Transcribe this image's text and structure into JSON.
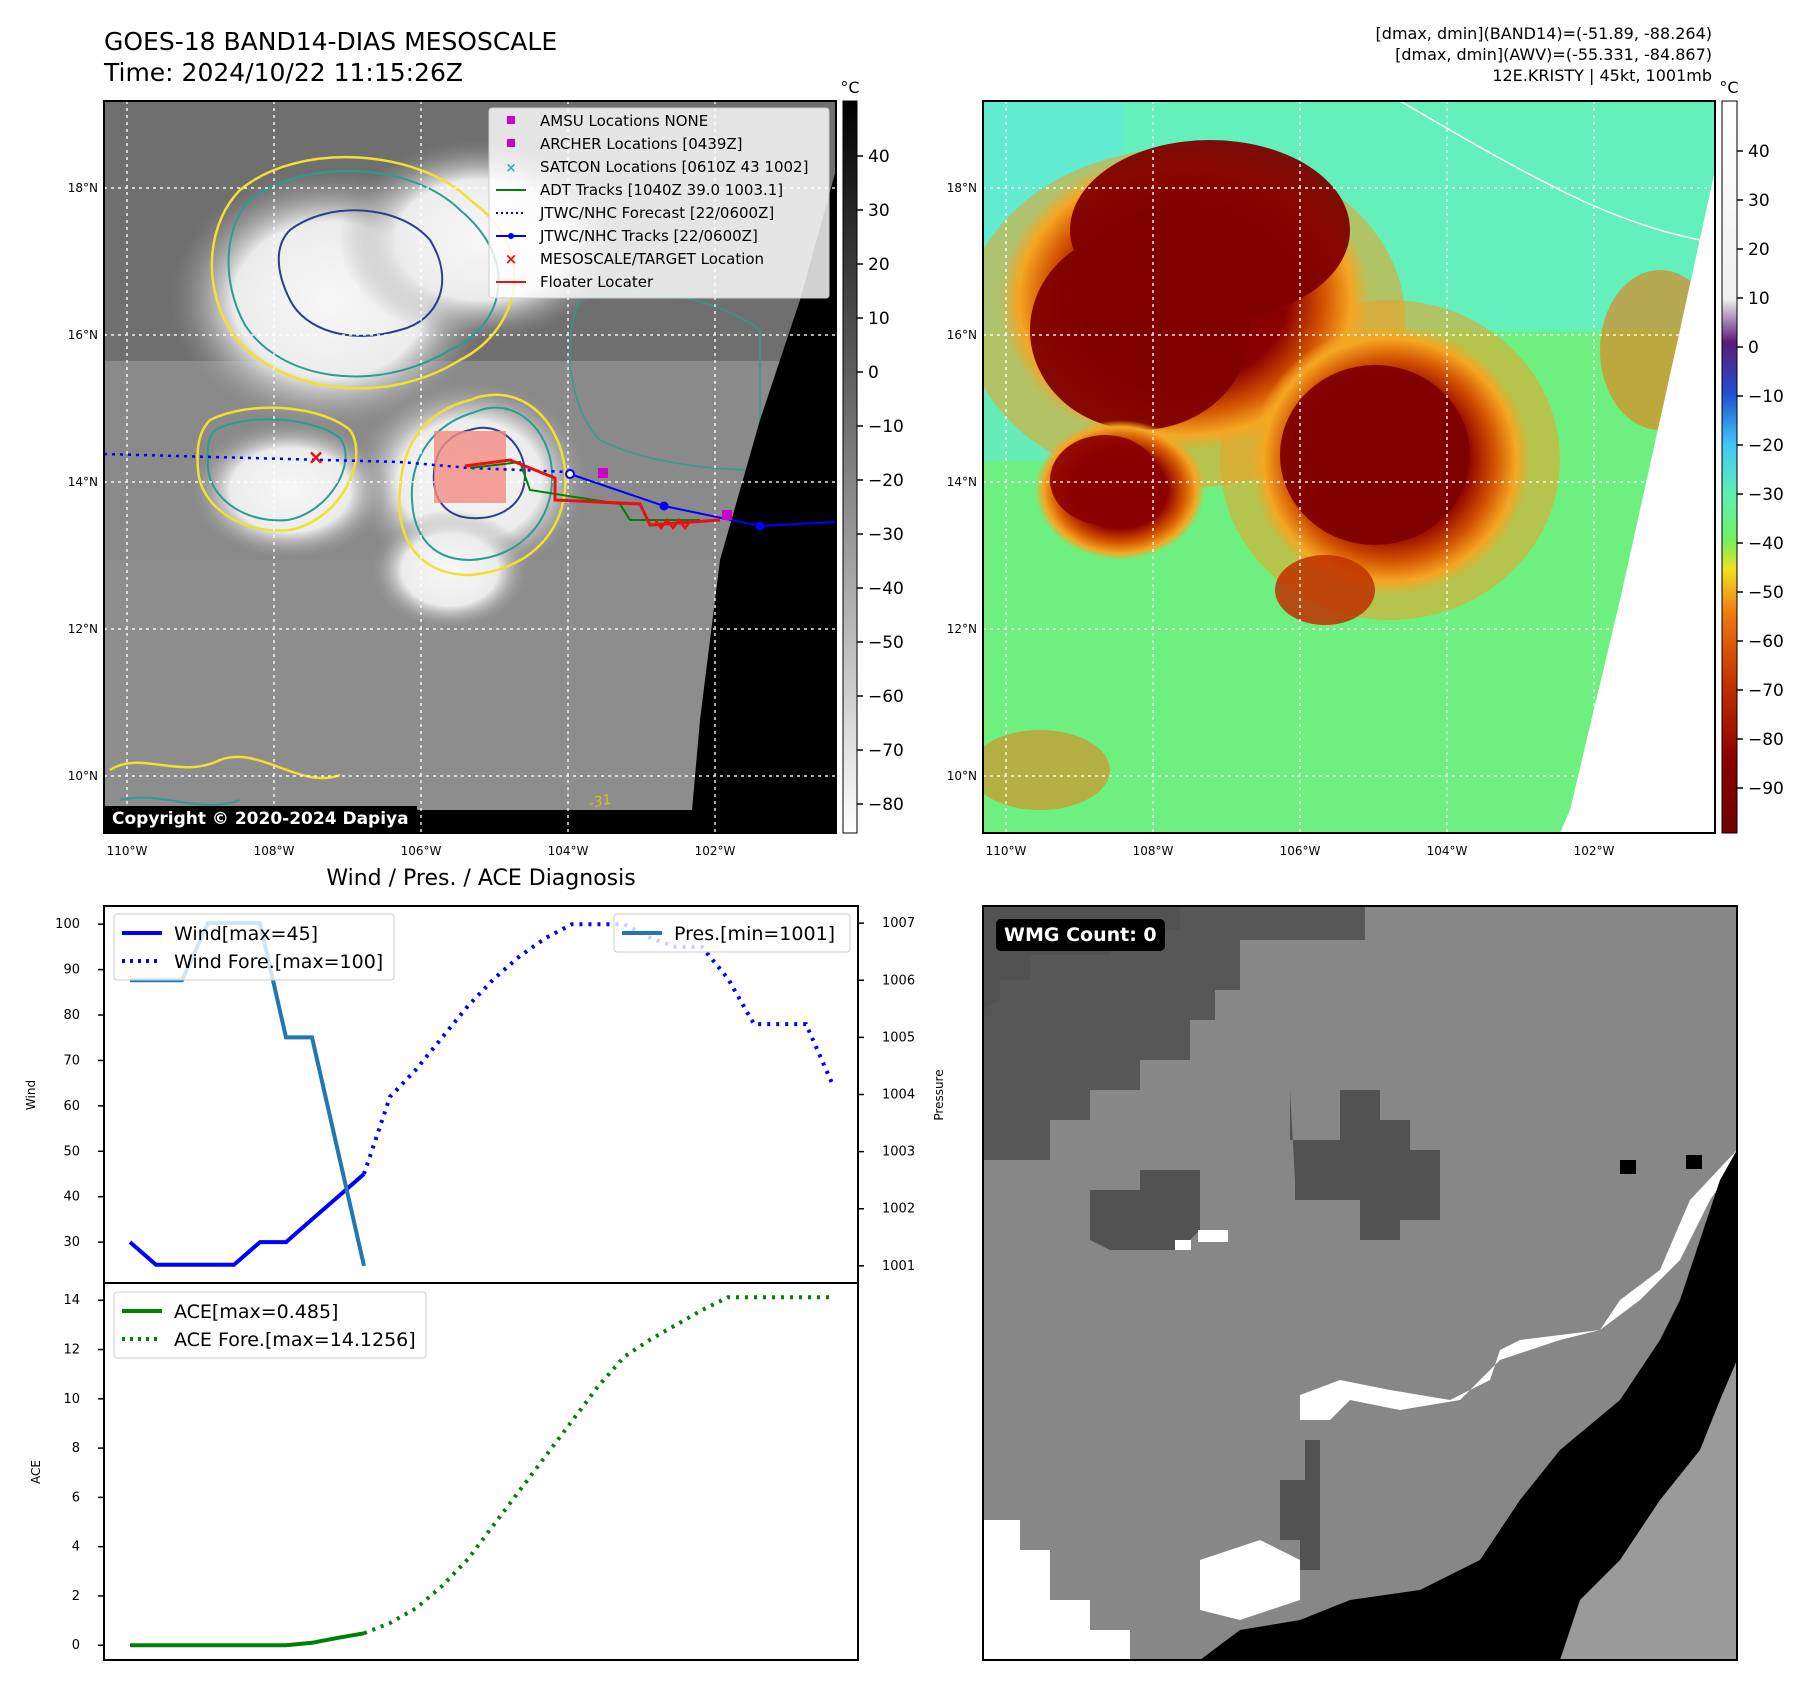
{
  "header": {
    "title_line1": "GOES-18 BAND14-DIAS MESOSCALE",
    "title_line2": "Time: 2024/10/22 11:15:26Z",
    "info_line1": "[dmax, dmin](BAND14)=(-51.89, -88.264)",
    "info_line2": "[dmax, dmin](AWV)=(-55.331, -84.867)",
    "info_line3": "12E.KRISTY | 45kt, 1001mb"
  },
  "maps": {
    "lat_ticks": [
      "18°N",
      "16°N",
      "14°N",
      "12°N",
      "10°N"
    ],
    "lon_ticks": [
      "110°W",
      "108°W",
      "106°W",
      "104°W",
      "102°W"
    ],
    "unit": "°C",
    "copyright": "Copyright © 2020-2024 Dapiya",
    "contour_label": "-31",
    "colors": {
      "gray_max": "#ffffff",
      "gray_min": "#1a1a1a",
      "land": "#000000",
      "eye_box": "#f28b82",
      "warm": "#57f08a",
      "cold": "#7f0000"
    }
  },
  "colorbar_gray": {
    "ticks": [
      "40",
      "30",
      "20",
      "10",
      "0",
      "−10",
      "−20",
      "−30",
      "−40",
      "−50",
      "−60",
      "−70",
      "−80"
    ]
  },
  "colorbar_color": {
    "ticks": [
      "40",
      "30",
      "20",
      "10",
      "0",
      "−10",
      "−20",
      "−30",
      "−40",
      "−50",
      "−60",
      "−70",
      "−80",
      "−90"
    ]
  },
  "legend_map": {
    "items": [
      "AMSU Locations NONE",
      "ARCHER Locations [0439Z]",
      "SATCON Locations [0610Z 43 1002]",
      "ADT Tracks [1040Z 39.0 1003.1]",
      "JTWC/NHC Forecast [22/0600Z]",
      "JTWC/NHC Tracks [22/0600Z]",
      "MESOSCALE/TARGET Location",
      "Floater Locater"
    ]
  },
  "wmg": {
    "label": "WMG Count: 0"
  },
  "chart_data": [
    {
      "type": "line",
      "title": "Wind / Pres. / ACE Diagnosis",
      "ylabel": "Wind",
      "ylabel_right": "Pressure",
      "ylim": [
        21,
        104
      ],
      "ylim_right": [
        1000.7,
        1007.3
      ],
      "yticks": [
        100,
        90,
        80,
        70,
        60,
        50,
        40,
        30
      ],
      "yticks_right": [
        1007,
        1006,
        1005,
        1004,
        1003,
        1002,
        1001
      ],
      "legend_left": [
        "Wind[max=45]",
        "Wind Fore.[max=100]"
      ],
      "legend_right": [
        "Pres.[min=1001]"
      ],
      "series": [
        {
          "name": "Wind[max=45]",
          "axis": "left",
          "color": "#0000ff",
          "style": "solid",
          "x": [
            0,
            1,
            2,
            3,
            4,
            5,
            6,
            7,
            8,
            9
          ],
          "values": [
            30,
            25,
            25,
            25,
            25,
            30,
            30,
            35,
            40,
            45
          ]
        },
        {
          "name": "Wind Fore.[max=100]",
          "axis": "left",
          "color": "#0000ff",
          "style": "dotted",
          "x": [
            9,
            10,
            11,
            12,
            13,
            14,
            15,
            16,
            17,
            18,
            19,
            20,
            21,
            22,
            23,
            24,
            25,
            26,
            27
          ],
          "values": [
            45,
            62,
            68,
            75,
            82,
            88,
            93,
            97,
            100,
            100,
            100,
            97,
            95,
            95,
            88,
            78,
            78,
            78,
            65
          ]
        },
        {
          "name": "Pres.[min=1001]",
          "axis": "right",
          "color": "#1f77b4",
          "style": "solid",
          "x": [
            0,
            1,
            2,
            3,
            4,
            5,
            6,
            7,
            8,
            9
          ],
          "values": [
            1006,
            1006,
            1006,
            1007,
            1007,
            1007,
            1005,
            1005,
            1003,
            1001
          ]
        }
      ]
    },
    {
      "type": "line",
      "ylabel": "ACE",
      "ylim": [
        -0.6,
        14.7
      ],
      "yticks": [
        14,
        12,
        10,
        8,
        6,
        4,
        2,
        0
      ],
      "legend": [
        "ACE[max=0.485]",
        "ACE Fore.[max=14.1256]"
      ],
      "series": [
        {
          "name": "ACE[max=0.485]",
          "color": "#008000",
          "style": "solid",
          "x": [
            0,
            1,
            2,
            3,
            4,
            5,
            6,
            7,
            8,
            9
          ],
          "values": [
            0,
            0,
            0,
            0,
            0,
            0,
            0,
            0.1,
            0.3,
            0.485
          ]
        },
        {
          "name": "ACE Fore.[max=14.1256]",
          "color": "#008000",
          "style": "dotted",
          "x": [
            9,
            10,
            11,
            12,
            13,
            14,
            15,
            16,
            17,
            18,
            19,
            20,
            21,
            22,
            23,
            24,
            25,
            26,
            27
          ],
          "values": [
            0.485,
            0.9,
            1.5,
            2.4,
            3.5,
            4.9,
            6.3,
            7.7,
            9.1,
            10.5,
            11.7,
            12.4,
            13.0,
            13.6,
            14.1256,
            14.1256,
            14.1256,
            14.1256,
            14.1256
          ]
        }
      ]
    }
  ]
}
